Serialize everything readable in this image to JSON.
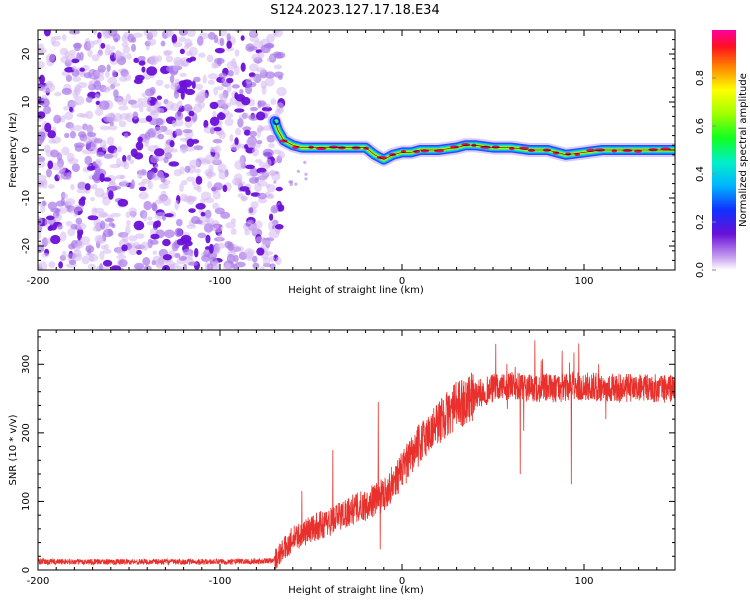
{
  "title": "S124.2023.127.17.18.E34",
  "colors": {
    "snr_line": "#e8312c",
    "ridge_core": "#e4134f",
    "noise_light": "#d6b8f0",
    "noise_dark": "#6a10d8",
    "axis": "#000000"
  },
  "chart_data": [
    {
      "type": "heatmap",
      "name": "spectrogram",
      "xlabel": "Height of straight line (km)",
      "ylabel": "Frequency (Hz)",
      "xlim": [
        -200,
        150
      ],
      "ylim": [
        -25,
        25
      ],
      "xticks": [
        -200,
        -100,
        0,
        100
      ],
      "yticks": [
        -20,
        -10,
        0,
        10,
        20
      ],
      "noise_region_x": [
        -200,
        -70
      ],
      "ridge_trace": {
        "x": [
          -70,
          -68,
          -65,
          -60,
          -55,
          -50,
          -45,
          -40,
          -35,
          -30,
          -25,
          -20,
          -15,
          -10,
          -5,
          0,
          5,
          10,
          20,
          30,
          35,
          40,
          50,
          60,
          70,
          80,
          90,
          100,
          110,
          120,
          130,
          140,
          150
        ],
        "y": [
          6,
          4,
          2,
          1,
          0.5,
          0.5,
          0.5,
          0.5,
          0.5,
          0.5,
          0.5,
          0.5,
          -1,
          -2,
          -1,
          -0.5,
          -0.5,
          0,
          0,
          0.5,
          1,
          1,
          0.5,
          0.5,
          0,
          0,
          -1,
          -0.5,
          0,
          0,
          0,
          0,
          0
        ]
      },
      "colorbar": {
        "label": "Normalized spectral amplitude",
        "range": [
          0.0,
          1.0
        ],
        "ticks": [
          "0.0",
          "0.2",
          "0.4",
          "0.6",
          "0.8"
        ]
      }
    },
    {
      "type": "line",
      "name": "snr",
      "xlabel": "Height of straight line (km)",
      "ylabel": "SNR (10 * v/v)",
      "xlim": [
        -200,
        150
      ],
      "ylim": [
        0,
        350
      ],
      "xticks": [
        -200,
        -100,
        0,
        100
      ],
      "yticks": [
        0,
        100,
        200,
        300
      ],
      "series": [
        {
          "name": "SNR",
          "trend_x": [
            -200,
            -150,
            -100,
            -75,
            -70,
            -60,
            -50,
            -40,
            -30,
            -20,
            -10,
            0,
            10,
            20,
            30,
            40,
            50,
            60,
            70,
            80,
            90,
            100,
            120,
            150
          ],
          "trend_y": [
            12,
            12,
            12,
            13,
            15,
            45,
            60,
            70,
            85,
            95,
            110,
            145,
            185,
            215,
            240,
            255,
            265,
            268,
            265,
            265,
            265,
            268,
            265,
            265
          ],
          "spikes": [
            {
              "x": -55,
              "y": 115
            },
            {
              "x": -38,
              "y": 175
            },
            {
              "x": -13,
              "y": 245
            },
            {
              "x": -12,
              "y": 30
            },
            {
              "x": 65,
              "y": 345
            },
            {
              "x": 65,
              "y": 140
            },
            {
              "x": 73,
              "y": 335
            },
            {
              "x": 88,
              "y": 320
            },
            {
              "x": 93,
              "y": 330
            },
            {
              "x": 93,
              "y": 125
            },
            {
              "x": 108,
              "y": 300
            },
            {
              "x": 112,
              "y": 220
            }
          ]
        }
      ]
    }
  ]
}
